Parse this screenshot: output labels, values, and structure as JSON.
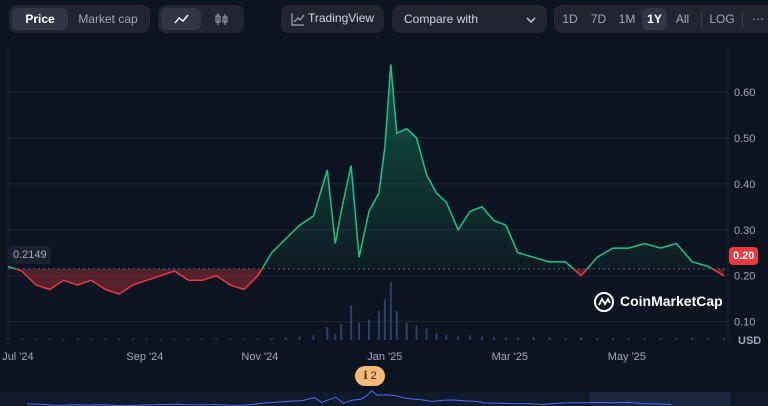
{
  "toolbar": {
    "tabs": [
      {
        "label": "Price",
        "active": true
      },
      {
        "label": "Market cap",
        "active": false
      }
    ],
    "chart_types": [
      {
        "icon": "line-chart-icon",
        "active": true
      },
      {
        "icon": "candlestick-icon",
        "active": false
      }
    ],
    "tradingview_label": "TradingView",
    "compare_label": "Compare with",
    "ranges": [
      {
        "label": "1D",
        "active": false
      },
      {
        "label": "7D",
        "active": false
      },
      {
        "label": "1M",
        "active": false
      },
      {
        "label": "1Y",
        "active": true
      },
      {
        "label": "All",
        "active": false
      },
      {
        "label": "LOG",
        "active": false
      }
    ],
    "more_label": "···"
  },
  "watermark": "CoinMarketCap",
  "baseline_label": "0.2149",
  "current_label": "0.20",
  "currency_label": "USD",
  "event_marker": {
    "label": "2"
  },
  "colors": {
    "up": "#16c784",
    "down": "#ea3943",
    "background": "#0d1421",
    "volume": "#3a4a7a"
  },
  "chart_data": {
    "type": "line",
    "title": "",
    "xlabel": "",
    "ylabel": "",
    "x_ticks": [
      "Jul '24",
      "Sep '24",
      "Nov '24",
      "Jan '25",
      "Mar '25",
      "May '25"
    ],
    "y_ticks": [
      0.1,
      0.2,
      0.3,
      0.4,
      0.5,
      0.6
    ],
    "ylim": [
      0.06,
      0.7
    ],
    "baseline": 0.2149,
    "current": 0.2,
    "series": [
      {
        "x": [
          "2024-06-28",
          "2024-07-05",
          "2024-07-12",
          "2024-07-19",
          "2024-07-26",
          "2024-08-02",
          "2024-08-09",
          "2024-08-16",
          "2024-08-23",
          "2024-08-30",
          "2024-09-06",
          "2024-09-13",
          "2024-09-20",
          "2024-09-27",
          "2024-10-04",
          "2024-10-11",
          "2024-10-18",
          "2024-10-25",
          "2024-11-01",
          "2024-11-08",
          "2024-11-15",
          "2024-11-22",
          "2024-11-29",
          "2024-12-06",
          "2024-12-10",
          "2024-12-13",
          "2024-12-18",
          "2024-12-22",
          "2024-12-27",
          "2025-01-01",
          "2025-01-04",
          "2025-01-07",
          "2025-01-10",
          "2025-01-15",
          "2025-01-20",
          "2025-01-25",
          "2025-01-30",
          "2025-02-04",
          "2025-02-10",
          "2025-02-16",
          "2025-02-22",
          "2025-02-28",
          "2025-03-06",
          "2025-03-12",
          "2025-03-20",
          "2025-03-28",
          "2025-04-05",
          "2025-04-13",
          "2025-04-21",
          "2025-04-29",
          "2025-05-07",
          "2025-05-15",
          "2025-05-23",
          "2025-05-31",
          "2025-06-08",
          "2025-06-16",
          "2025-06-24"
        ],
        "values": [
          0.22,
          0.21,
          0.18,
          0.17,
          0.19,
          0.18,
          0.19,
          0.17,
          0.16,
          0.18,
          0.19,
          0.2,
          0.21,
          0.19,
          0.19,
          0.2,
          0.18,
          0.17,
          0.2,
          0.25,
          0.28,
          0.31,
          0.33,
          0.43,
          0.27,
          0.34,
          0.44,
          0.24,
          0.34,
          0.38,
          0.48,
          0.66,
          0.51,
          0.52,
          0.5,
          0.42,
          0.38,
          0.36,
          0.3,
          0.34,
          0.35,
          0.32,
          0.31,
          0.25,
          0.24,
          0.23,
          0.23,
          0.2,
          0.24,
          0.26,
          0.26,
          0.27,
          0.26,
          0.27,
          0.23,
          0.22,
          0.2
        ]
      }
    ],
    "volume": [
      0.02,
      0.02,
      0.02,
      0.02,
      0.02,
      0.02,
      0.02,
      0.02,
      0.02,
      0.02,
      0.02,
      0.02,
      0.02,
      0.02,
      0.02,
      0.02,
      0.02,
      0.02,
      0.02,
      0.03,
      0.04,
      0.06,
      0.08,
      0.22,
      0.1,
      0.28,
      0.6,
      0.3,
      0.35,
      0.5,
      0.7,
      1.0,
      0.5,
      0.3,
      0.25,
      0.2,
      0.12,
      0.08,
      0.06,
      0.08,
      0.06,
      0.05,
      0.04,
      0.04,
      0.05,
      0.04,
      0.03,
      0.04,
      0.03,
      0.03,
      0.03,
      0.03,
      0.03,
      0.03,
      0.04,
      0.03,
      0.03
    ]
  }
}
